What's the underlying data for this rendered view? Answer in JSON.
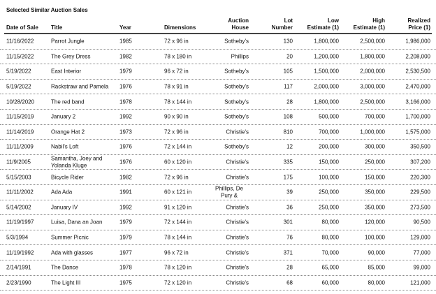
{
  "title": "Selected Similar Auction Sales",
  "headers": [
    "Date of Sale",
    "Title",
    "Year",
    "Dimensions",
    "Auction\nHouse",
    "Lot\nNumber",
    "Low\nEstimate (1)",
    "High\nEstimate (1)",
    "Realized\nPrice (1)"
  ],
  "rows": [
    [
      "11/16/2022",
      "Parrot Jungle",
      "1985",
      "72 x 96 in",
      "Sotheby's",
      "130",
      "1,800,000",
      "2,500,000",
      "1,986,000"
    ],
    [
      "11/15/2022",
      "The Grey Dress",
      "1982",
      "78 x 180 in",
      "Phillips",
      "20",
      "1,200,000",
      "1,800,000",
      "2,208,000"
    ],
    [
      "5/19/2022",
      "East Interior",
      "1979",
      "96 x 72 in",
      "Sotheby's",
      "105",
      "1,500,000",
      "2,000,000",
      "2,530,500"
    ],
    [
      "5/19/2022",
      "Rackstraw and Pamela",
      "1976",
      "78 x 91 in",
      "Sotheby's",
      "117",
      "2,000,000",
      "3,000,000",
      "2,470,000"
    ],
    [
      "10/28/2020",
      "The red band",
      "1978",
      "78 x 144 in",
      "Sotheby's",
      "28",
      "1,800,000",
      "2,500,000",
      "3,166,000"
    ],
    [
      "11/15/2019",
      "January 2",
      "1992",
      "90 x 90 in",
      "Sotheby's",
      "108",
      "500,000",
      "700,000",
      "1,700,000"
    ],
    [
      "11/14/2019",
      "Orange Hat 2",
      "1973",
      "72 x 96 in",
      "Christie's",
      "810",
      "700,000",
      "1,000,000",
      "1,575,000"
    ],
    [
      "11/11/2009",
      "Nabil's Loft",
      "1976",
      "72 x 144 in",
      "Sotheby's",
      "12",
      "200,000",
      "300,000",
      "350,500"
    ],
    [
      "11/9/2005",
      "Samantha, Joey and Yolanda Kluge",
      "1976",
      "60 x 120 in",
      "Christie's",
      "335",
      "150,000",
      "250,000",
      "307,200"
    ],
    [
      "5/15/2003",
      "Bicycle Rider",
      "1982",
      "72 x 96 in",
      "Christie's",
      "175",
      "100,000",
      "150,000",
      "220,300"
    ],
    [
      "11/11/2002",
      "Ada Ada",
      "1991",
      "60 x 121 in",
      "Phillips, De Pury &",
      "39",
      "250,000",
      "350,000",
      "229,500"
    ],
    [
      "5/14/2002",
      "January IV",
      "1992",
      "91 x 120 in",
      "Christie's",
      "36",
      "250,000",
      "350,000",
      "273,500"
    ],
    [
      "11/19/1997",
      "Luisa, Dana an Joan",
      "1979",
      "72 x 144 in",
      "Christie's",
      "301",
      "80,000",
      "120,000",
      "90,500"
    ],
    [
      "5/3/1994",
      "Summer Picnic",
      "1979",
      "78 x 144 in",
      "Christie's",
      "76",
      "80,000",
      "100,000",
      "129,000"
    ],
    [
      "11/19/1992",
      "Ada with glasses",
      "1977",
      "96 x 72 in",
      "Christie's",
      "371",
      "70,000",
      "90,000",
      "77,000"
    ],
    [
      "2/14/1991",
      "The Dance",
      "1978",
      "78 x 120 in",
      "Christie's",
      "28",
      "65,000",
      "85,000",
      "99,000"
    ],
    [
      "2/23/1990",
      "The Light III",
      "1975",
      "72 x 120 in",
      "Christie's",
      "68",
      "60,000",
      "80,000",
      "121,000"
    ]
  ]
}
